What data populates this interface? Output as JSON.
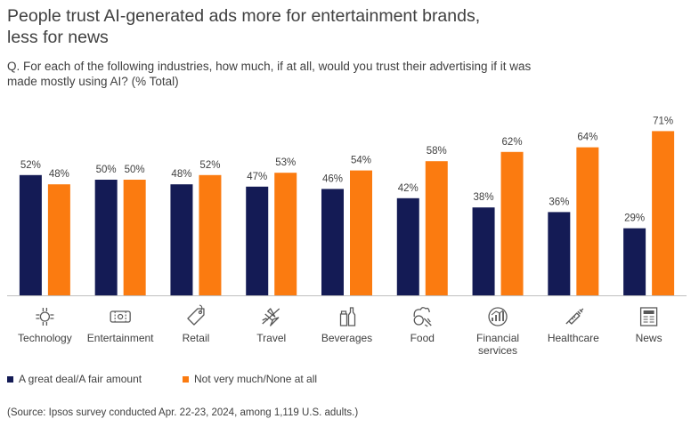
{
  "title_lines": [
    "People trust AI-generated ads more for entertainment brands,",
    "less for news"
  ],
  "question_lines": [
    "Q. For each of the following industries, how much, if at all, would you trust their advertising if it was",
    "made mostly using AI? (% Total)"
  ],
  "source": "(Source: Ipsos survey conducted Apr. 22-23, 2024, among 1,119 U.S. adults.)",
  "colors": {
    "series1": "#141b55",
    "series2": "#fb7b10",
    "axis": "#bfbfbf",
    "icon": "#595959"
  },
  "chart_data": {
    "type": "bar",
    "categories": [
      {
        "lines": [
          "Technology"
        ],
        "icon": "technology-icon"
      },
      {
        "lines": [
          "Entertainment"
        ],
        "icon": "entertainment-icon"
      },
      {
        "lines": [
          "Retail"
        ],
        "icon": "retail-tag-icon"
      },
      {
        "lines": [
          "Travel"
        ],
        "icon": "airplane-icon"
      },
      {
        "lines": [
          "Beverages"
        ],
        "icon": "beverages-icon"
      },
      {
        "lines": [
          "Food"
        ],
        "icon": "food-icon"
      },
      {
        "lines": [
          "Financial",
          "services"
        ],
        "icon": "financial-icon"
      },
      {
        "lines": [
          "Healthcare"
        ],
        "icon": "syringe-icon"
      },
      {
        "lines": [
          "News"
        ],
        "icon": "newspaper-icon"
      }
    ],
    "series": [
      {
        "name": "A great deal/A fair amount",
        "values": [
          52,
          50,
          48,
          47,
          46,
          42,
          38,
          36,
          29
        ],
        "labels": [
          "52%",
          "50%",
          "48%",
          "47%",
          "46%",
          "42%",
          "38%",
          "36%",
          "29%"
        ]
      },
      {
        "name": "Not very much/None at all",
        "values": [
          48,
          50,
          52,
          53,
          54,
          58,
          62,
          64,
          71
        ],
        "labels": [
          "48%",
          "50%",
          "52%",
          "53%",
          "54%",
          "58%",
          "62%",
          "64%",
          "71%"
        ]
      }
    ],
    "ylim": [
      0,
      100
    ],
    "unit": "%",
    "legend_position": "bottom-left"
  }
}
